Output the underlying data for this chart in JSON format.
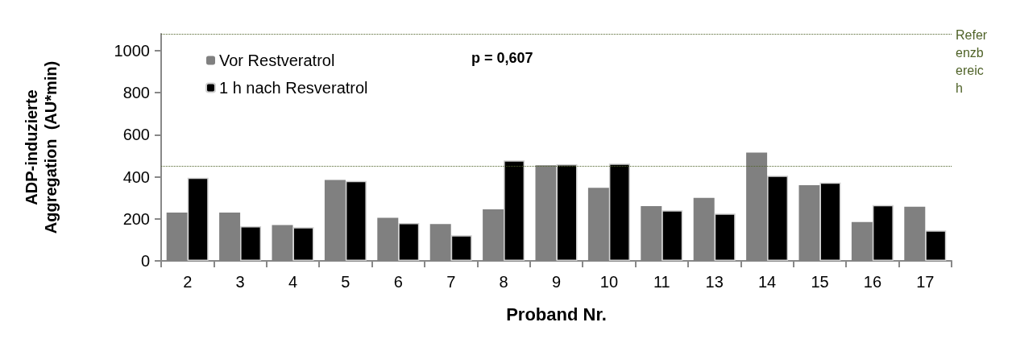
{
  "chart_data": {
    "type": "bar",
    "xlabel": "Proband Nr.",
    "ylabel": "ADP-induzierte\nAggregation  (AU*min)",
    "categories": [
      "2",
      "3",
      "4",
      "5",
      "6",
      "7",
      "8",
      "9",
      "10",
      "11",
      "13",
      "14",
      "15",
      "16",
      "17"
    ],
    "series": [
      {
        "name": "Vor Restveratrol",
        "color": "#808080",
        "values": [
          230,
          230,
          170,
          385,
          205,
          175,
          245,
          455,
          348,
          260,
          300,
          515,
          360,
          185,
          258
        ]
      },
      {
        "name": "1 h nach Resveratrol",
        "color": "#000000",
        "values": [
          395,
          165,
          160,
          380,
          180,
          122,
          478,
          460,
          462,
          240,
          225,
          405,
          372,
          265,
          145
        ]
      }
    ],
    "ylim": [
      0,
      1080
    ],
    "yticks": [
      0,
      200,
      400,
      600,
      800,
      1000
    ],
    "grid": false,
    "legend": "top left",
    "ref_lines": [
      {
        "axis": "y",
        "value": 1080,
        "label": "Referenzbereich",
        "color": "#4f6228",
        "line_style": "dotted"
      },
      {
        "axis": "y",
        "value": 450,
        "label": null,
        "color": "#4f6228",
        "line_style": "dotted"
      }
    ],
    "annotations": [
      "p = 0,607"
    ]
  }
}
